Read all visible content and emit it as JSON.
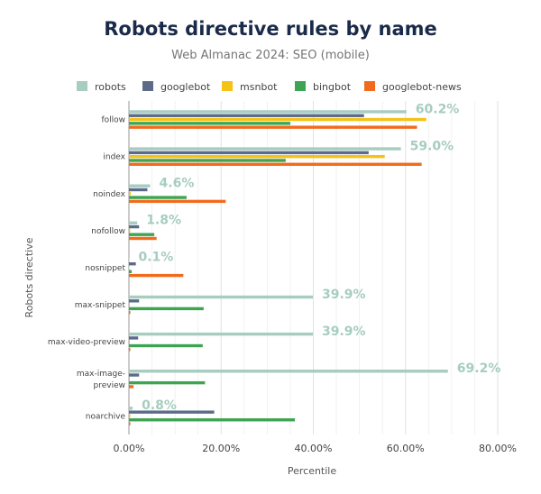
{
  "chart_data": {
    "type": "bar",
    "orientation": "horizontal",
    "title": "Robots directive rules by name",
    "subtitle": "Web Almanac 2024: SEO (mobile)",
    "xlabel": "Percentile",
    "ylabel": "Robots directive",
    "xlim": [
      0,
      80
    ],
    "x_ticks": [
      "0.00%",
      "20.00%",
      "40.00%",
      "60.00%",
      "80.00%"
    ],
    "grid": true,
    "legend_position": "top",
    "categories": [
      "follow",
      "index",
      "noindex",
      "nofollow",
      "nosnippet",
      "max-snippet",
      "max-video-preview",
      "max-image-preview",
      "noarchive"
    ],
    "category_display": [
      [
        "follow"
      ],
      [
        "index"
      ],
      [
        "noindex"
      ],
      [
        "nofollow"
      ],
      [
        "nosnippet"
      ],
      [
        "max-snippet"
      ],
      [
        "max-video-preview"
      ],
      [
        "max-image-",
        "preview"
      ],
      [
        "noarchive"
      ]
    ],
    "series": [
      {
        "name": "robots",
        "color": "#a6cdbf",
        "values": [
          60.2,
          59.0,
          4.6,
          1.8,
          0.1,
          39.9,
          39.9,
          69.2,
          0.8
        ]
      },
      {
        "name": "googlebot",
        "color": "#5c6b8a",
        "values": [
          51.0,
          52.0,
          4.0,
          2.2,
          1.5,
          2.2,
          2.0,
          2.2,
          18.5
        ]
      },
      {
        "name": "msnbot",
        "color": "#f5c216",
        "values": [
          64.5,
          55.5,
          0.4,
          0.3,
          0.1,
          0.2,
          0.2,
          0.2,
          0.3
        ]
      },
      {
        "name": "bingbot",
        "color": "#3da551",
        "values": [
          35.0,
          34.0,
          12.5,
          5.5,
          0.6,
          16.2,
          16.0,
          16.5,
          36.0
        ]
      },
      {
        "name": "googlebot-news",
        "color": "#f26b1d",
        "values": [
          62.5,
          63.5,
          21.0,
          6.0,
          11.8,
          0.3,
          0.3,
          1.0,
          0.3
        ]
      }
    ],
    "data_labels": [
      "60.2%",
      "59.0%",
      "4.6%",
      "1.8%",
      "0.1%",
      "39.9%",
      "39.9%",
      "69.2%",
      "0.8%"
    ]
  }
}
